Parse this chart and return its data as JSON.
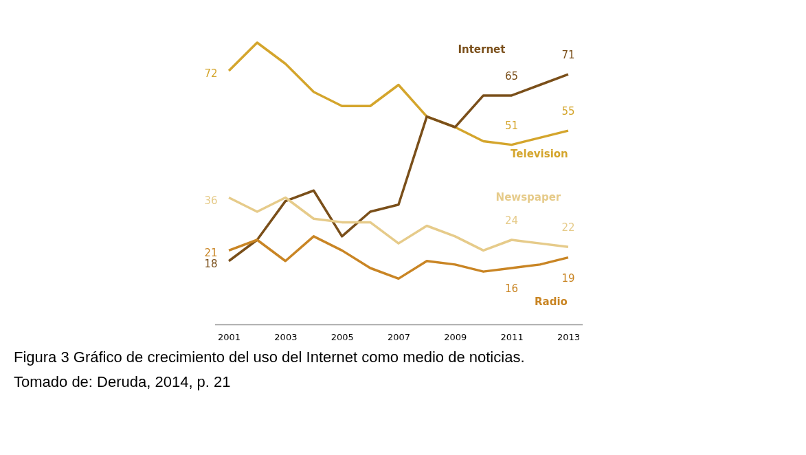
{
  "chart_data": {
    "type": "line",
    "x": [
      2001,
      2002,
      2003,
      2004,
      2005,
      2006,
      2007,
      2008,
      2009,
      2010,
      2011,
      2012,
      2013
    ],
    "xlim": [
      2000.5,
      2013.5
    ],
    "xticks": [
      2001,
      2003,
      2005,
      2007,
      2009,
      2011,
      2013
    ],
    "grid": false,
    "legend": false,
    "marker": "none",
    "line_style": "solid",
    "tick_labels": "x",
    "series": [
      {
        "name": "Television",
        "color": "#d4a52c",
        "values": [
          72,
          80,
          74,
          66,
          62,
          62,
          68,
          59,
          56,
          52,
          51,
          53,
          55
        ],
        "value_labels": [
          "72",
          null,
          null,
          null,
          null,
          null,
          null,
          null,
          null,
          null,
          "51",
          null,
          "55"
        ]
      },
      {
        "name": "Internet",
        "color": "#7a4f1a",
        "values": [
          18,
          24,
          35,
          38,
          25,
          32,
          34,
          59,
          56,
          65,
          65,
          68,
          71
        ],
        "value_labels": [
          "18",
          null,
          null,
          null,
          null,
          null,
          null,
          null,
          null,
          null,
          "65",
          null,
          "71"
        ]
      },
      {
        "name": "Newspaper",
        "color": "#e6cb8a",
        "values": [
          36,
          32,
          36,
          30,
          29,
          29,
          23,
          28,
          25,
          21,
          24,
          23,
          22
        ],
        "value_labels": [
          "36",
          null,
          null,
          null,
          null,
          null,
          null,
          null,
          null,
          null,
          "24",
          null,
          "22"
        ]
      },
      {
        "name": "Radio",
        "color": "#c98524",
        "values": [
          21,
          24,
          18,
          25,
          21,
          16,
          13,
          18,
          17,
          15,
          16,
          17,
          19
        ],
        "value_labels": [
          "21",
          null,
          null,
          null,
          null,
          null,
          null,
          null,
          null,
          null,
          "16",
          null,
          "19"
        ]
      }
    ],
    "annotations": [
      "Figura 3 Gráfico de crecimiento del uso del Internet como medio de noticias.",
      "Tomado de: Deruda, 2014, p. 21"
    ]
  }
}
